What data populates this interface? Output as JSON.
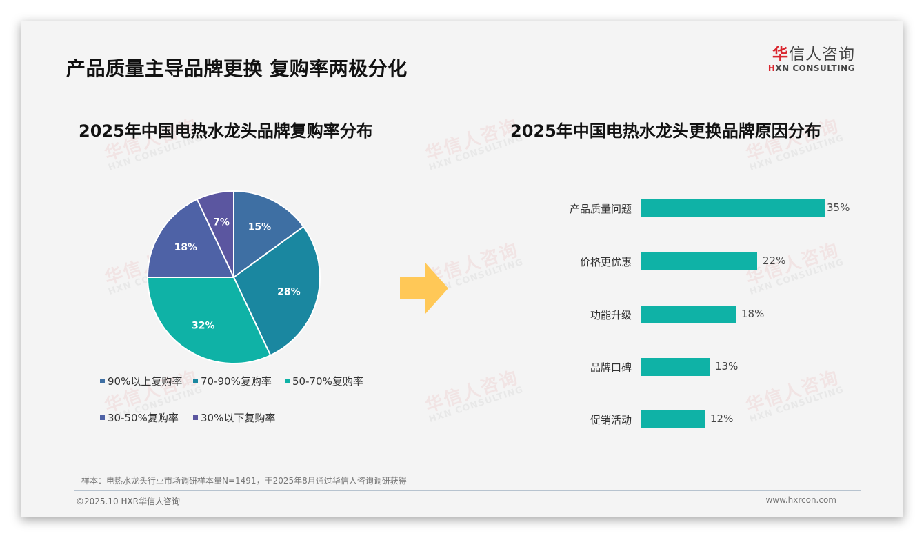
{
  "header": {
    "title": "产品质量主导品牌更换 复购率两极分化",
    "logo": {
      "cn_first": "华",
      "cn_rest": "信人咨询",
      "en_mark": "H",
      "en_rest": "XN CONSULTING"
    }
  },
  "watermark": {
    "cn": "华信人咨询",
    "en": "HXN CONSULTING"
  },
  "chart_data": [
    {
      "type": "pie",
      "title": "2025年中国电热水龙头品牌复购率分布",
      "categories": [
        "90%以上复购率",
        "70-90%复购率",
        "50-70%复购率",
        "30-50%复购率",
        "30%以下复购率"
      ],
      "values": [
        15,
        28,
        32,
        18,
        7
      ],
      "labels": [
        "15%",
        "28%",
        "32%",
        "18%",
        "7%"
      ],
      "colors": [
        "#3e6fa3",
        "#1a87a0",
        "#0fb2a6",
        "#4e62a6",
        "#5b56a0"
      ],
      "start_angle": "12 o'clock",
      "direction": "clockwise",
      "legend_position": "bottom"
    },
    {
      "type": "bar",
      "orientation": "horizontal",
      "title": "2025年中国电热水龙头更换品牌原因分布",
      "categories": [
        "产品质量问题",
        "价格更优惠",
        "功能升级",
        "品牌口碑",
        "促销活动"
      ],
      "values": [
        35,
        22,
        18,
        13,
        12
      ],
      "labels": [
        "35%",
        "22%",
        "18%",
        "13%",
        "12%"
      ],
      "color": "#0fb2a6",
      "xlabel": "",
      "ylabel": "",
      "grid": false
    }
  ],
  "arrow": {
    "color": "#ffc857",
    "icon": "right-arrow"
  },
  "footer": {
    "source": "样本：电热水龙头行业市场调研样本量N=1491，于2025年8月通过华信人咨询调研获得",
    "copyright": "©2025.10 HXR华信人咨询",
    "website": "www.hxrcon.com"
  }
}
